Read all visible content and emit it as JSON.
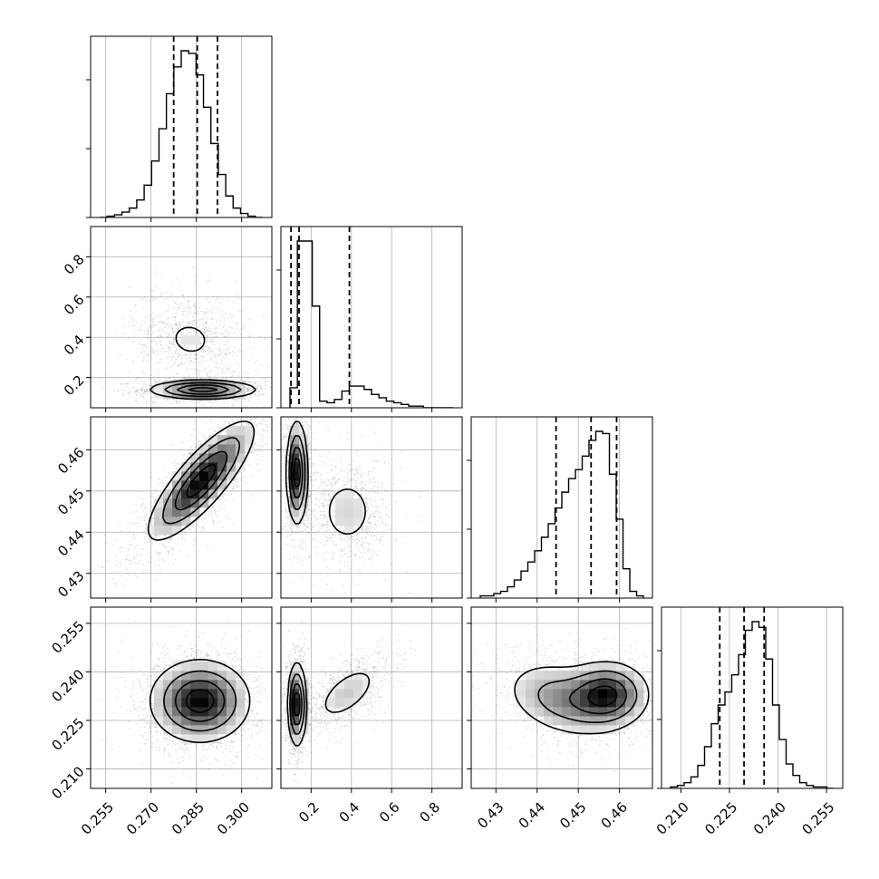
{
  "chart_data": {
    "type": "corner",
    "parameters": [
      {
        "id": "p0",
        "ticks": [
          0.255,
          0.27,
          0.285,
          0.3
        ],
        "tick_labels": [
          "0.255",
          "0.270",
          "0.285",
          "0.300"
        ],
        "range": [
          0.25,
          0.31
        ]
      },
      {
        "id": "p1",
        "ticks": [
          0.2,
          0.4,
          0.6,
          0.8
        ],
        "tick_labels": [
          "0.2",
          "0.4",
          "0.6",
          "0.8"
        ],
        "range": [
          0.05,
          0.95
        ]
      },
      {
        "id": "p2",
        "ticks": [
          0.43,
          0.44,
          0.45,
          0.46
        ],
        "tick_labels": [
          "0.43",
          "0.44",
          "0.45",
          "0.46"
        ],
        "range": [
          0.424,
          0.468
        ]
      },
      {
        "id": "p3",
        "ticks": [
          0.21,
          0.225,
          0.24,
          0.255
        ],
        "tick_labels": [
          "0.210",
          "0.225",
          "0.240",
          "0.255"
        ],
        "range": [
          0.204,
          0.26
        ]
      }
    ],
    "histograms": [
      {
        "param": 0,
        "quantiles": [
          0.2775,
          0.2853,
          0.292
        ],
        "counts": [
          0,
          1,
          2,
          4,
          7,
          13,
          24,
          42,
          66,
          92,
          112,
          124,
          122,
          106,
          82,
          55,
          32,
          16,
          7,
          3,
          1,
          0
        ]
      },
      {
        "param": 1,
        "quantiles": [
          0.1,
          0.14,
          0.39
        ],
        "counts": [
          12,
          100,
          100,
          61,
          4,
          3,
          5,
          10,
          13,
          13,
          11,
          8,
          6,
          4,
          3,
          2,
          1,
          1,
          0,
          0,
          0,
          0
        ]
      },
      {
        "param": 2,
        "quantiles": [
          0.4446,
          0.4531,
          0.4593
        ],
        "counts": [
          1,
          1,
          2,
          3,
          5,
          8,
          12,
          16,
          21,
          27,
          33,
          40,
          47,
          53,
          57,
          63,
          70,
          74,
          73,
          55,
          35,
          13,
          3,
          1
        ]
      },
      {
        "param": 3,
        "quantiles": [
          0.222,
          0.2295,
          0.2357
        ],
        "counts": [
          1,
          2,
          4,
          8,
          16,
          29,
          45,
          58,
          67,
          79,
          93,
          110,
          116,
          112,
          90,
          58,
          34,
          17,
          9,
          4,
          2,
          1,
          1,
          0
        ]
      }
    ],
    "pairs": [
      {
        "x": 0,
        "y": 1,
        "modes": [
          {
            "center": [
              0.2872,
              0.14
            ],
            "sigma": [
              0.0085,
              0.022
            ],
            "rho": 0.0,
            "weight": 0.62
          },
          {
            "center": [
              0.283,
              0.39
            ],
            "sigma": [
              0.008,
              0.1
            ],
            "rho": -0.1,
            "weight": 0.38
          }
        ]
      },
      {
        "x": 0,
        "y": 2,
        "modes": [
          {
            "center": [
              0.2866,
              0.4525
            ],
            "sigma": [
              0.0085,
              0.007
            ],
            "rho": 0.82,
            "weight": 1.0
          }
        ]
      },
      {
        "x": 1,
        "y": 2,
        "modes": [
          {
            "center": [
              0.13,
              0.4545
            ],
            "sigma": [
              0.025,
              0.006
            ],
            "rho": 0.0,
            "weight": 0.62
          },
          {
            "center": [
              0.38,
              0.445
            ],
            "sigma": [
              0.09,
              0.0055
            ],
            "rho": 0.0,
            "weight": 0.38
          }
        ]
      },
      {
        "x": 0,
        "y": 3,
        "modes": [
          {
            "center": [
              0.2862,
              0.231
            ],
            "sigma": [
              0.008,
              0.0062
            ],
            "rho": 0.0,
            "weight": 1.0
          }
        ]
      },
      {
        "x": 1,
        "y": 3,
        "modes": [
          {
            "center": [
              0.13,
              0.23
            ],
            "sigma": [
              0.022,
              0.0062
            ],
            "rho": 0.0,
            "weight": 0.62
          },
          {
            "center": [
              0.38,
              0.2335
            ],
            "sigma": [
              0.09,
              0.005
            ],
            "rho": 0.6,
            "weight": 0.38
          }
        ]
      },
      {
        "x": 2,
        "y": 3,
        "modes": [
          {
            "center": [
              0.457,
              0.233
            ],
            "sigma": [
              0.005,
              0.005
            ],
            "rho": 0.0,
            "weight": 0.55
          },
          {
            "center": [
              0.446,
              0.2315
            ],
            "sigma": [
              0.007,
              0.006
            ],
            "rho": -0.3,
            "weight": 0.45
          }
        ]
      }
    ],
    "grid": true
  }
}
